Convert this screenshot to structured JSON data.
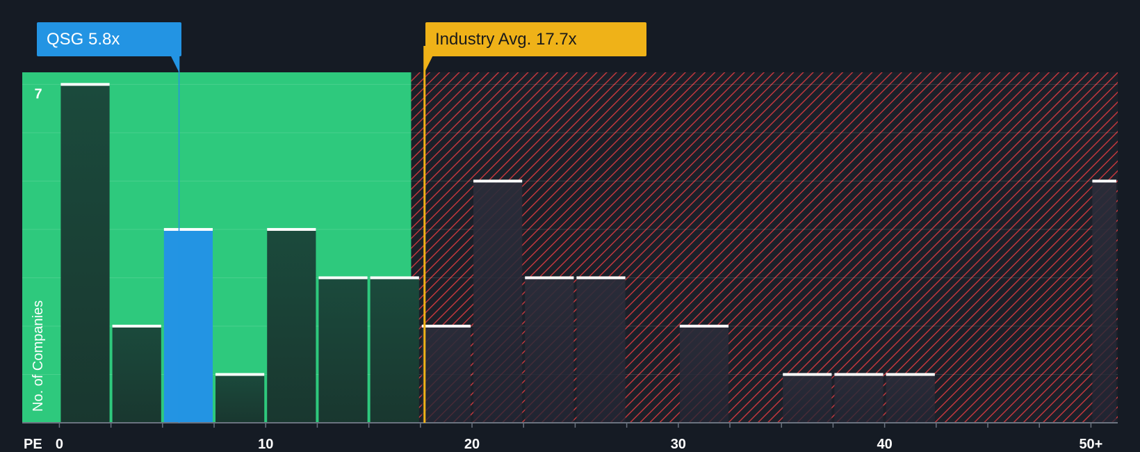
{
  "chart_data": {
    "type": "bar",
    "title": "",
    "xlabel": "PE",
    "ylabel": "No. of Companies",
    "x_ticks": [
      "0",
      "10",
      "20",
      "30",
      "40",
      "50+"
    ],
    "x_tick_values": [
      0,
      10,
      20,
      30,
      40,
      50
    ],
    "xlim": [
      -1.8,
      51.3
    ],
    "ylim": [
      0,
      7.25
    ],
    "y_ticks_labeled": [
      {
        "value": 7,
        "label": "7"
      }
    ],
    "y_gridlines": [
      1,
      2,
      3,
      4,
      5,
      6,
      7
    ],
    "bins": [
      {
        "x0": 0,
        "x1": 2.5,
        "value": 7,
        "zone": "fair"
      },
      {
        "x0": 2.5,
        "x1": 5,
        "value": 2,
        "zone": "fair"
      },
      {
        "x0": 5,
        "x1": 7.5,
        "value": 4,
        "zone": "fair",
        "highlight": true
      },
      {
        "x0": 7.5,
        "x1": 10,
        "value": 1,
        "zone": "fair"
      },
      {
        "x0": 10,
        "x1": 12.5,
        "value": 4,
        "zone": "fair"
      },
      {
        "x0": 12.5,
        "x1": 15,
        "value": 3,
        "zone": "fair"
      },
      {
        "x0": 15,
        "x1": 17.5,
        "value": 3,
        "zone": "fair"
      },
      {
        "x0": 17.5,
        "x1": 20,
        "value": 2,
        "zone": "over"
      },
      {
        "x0": 20,
        "x1": 22.5,
        "value": 5,
        "zone": "over"
      },
      {
        "x0": 22.5,
        "x1": 25,
        "value": 3,
        "zone": "over"
      },
      {
        "x0": 25,
        "x1": 27.5,
        "value": 3,
        "zone": "over"
      },
      {
        "x0": 30,
        "x1": 32.5,
        "value": 2,
        "zone": "over"
      },
      {
        "x0": 35,
        "x1": 37.5,
        "value": 1,
        "zone": "over"
      },
      {
        "x0": 37.5,
        "x1": 40,
        "value": 1,
        "zone": "over"
      },
      {
        "x0": 40,
        "x1": 42.5,
        "value": 1,
        "zone": "over"
      },
      {
        "x0": 50,
        "x1": 51.3,
        "value": 5,
        "zone": "over"
      }
    ],
    "fair_zone_end": 17.05,
    "company": {
      "name": "QSG",
      "value": 5.8,
      "label": "QSG 5.8x"
    },
    "industry": {
      "name": "Industry Avg.",
      "value": 17.7,
      "label": "Industry Avg. 17.7x"
    },
    "colors": {
      "background": "#151b24",
      "fair_zone": "#2ec97d",
      "over_zone_stripe": "#c0373d",
      "bar_fair": "#1e4a3d",
      "bar_over": "#2a2c38",
      "bar_highlight": "#2394e3",
      "bar_cap": "#ffffff",
      "company": "#2394e3",
      "industry": "#efb218",
      "tick_text": "#ffffff"
    }
  }
}
